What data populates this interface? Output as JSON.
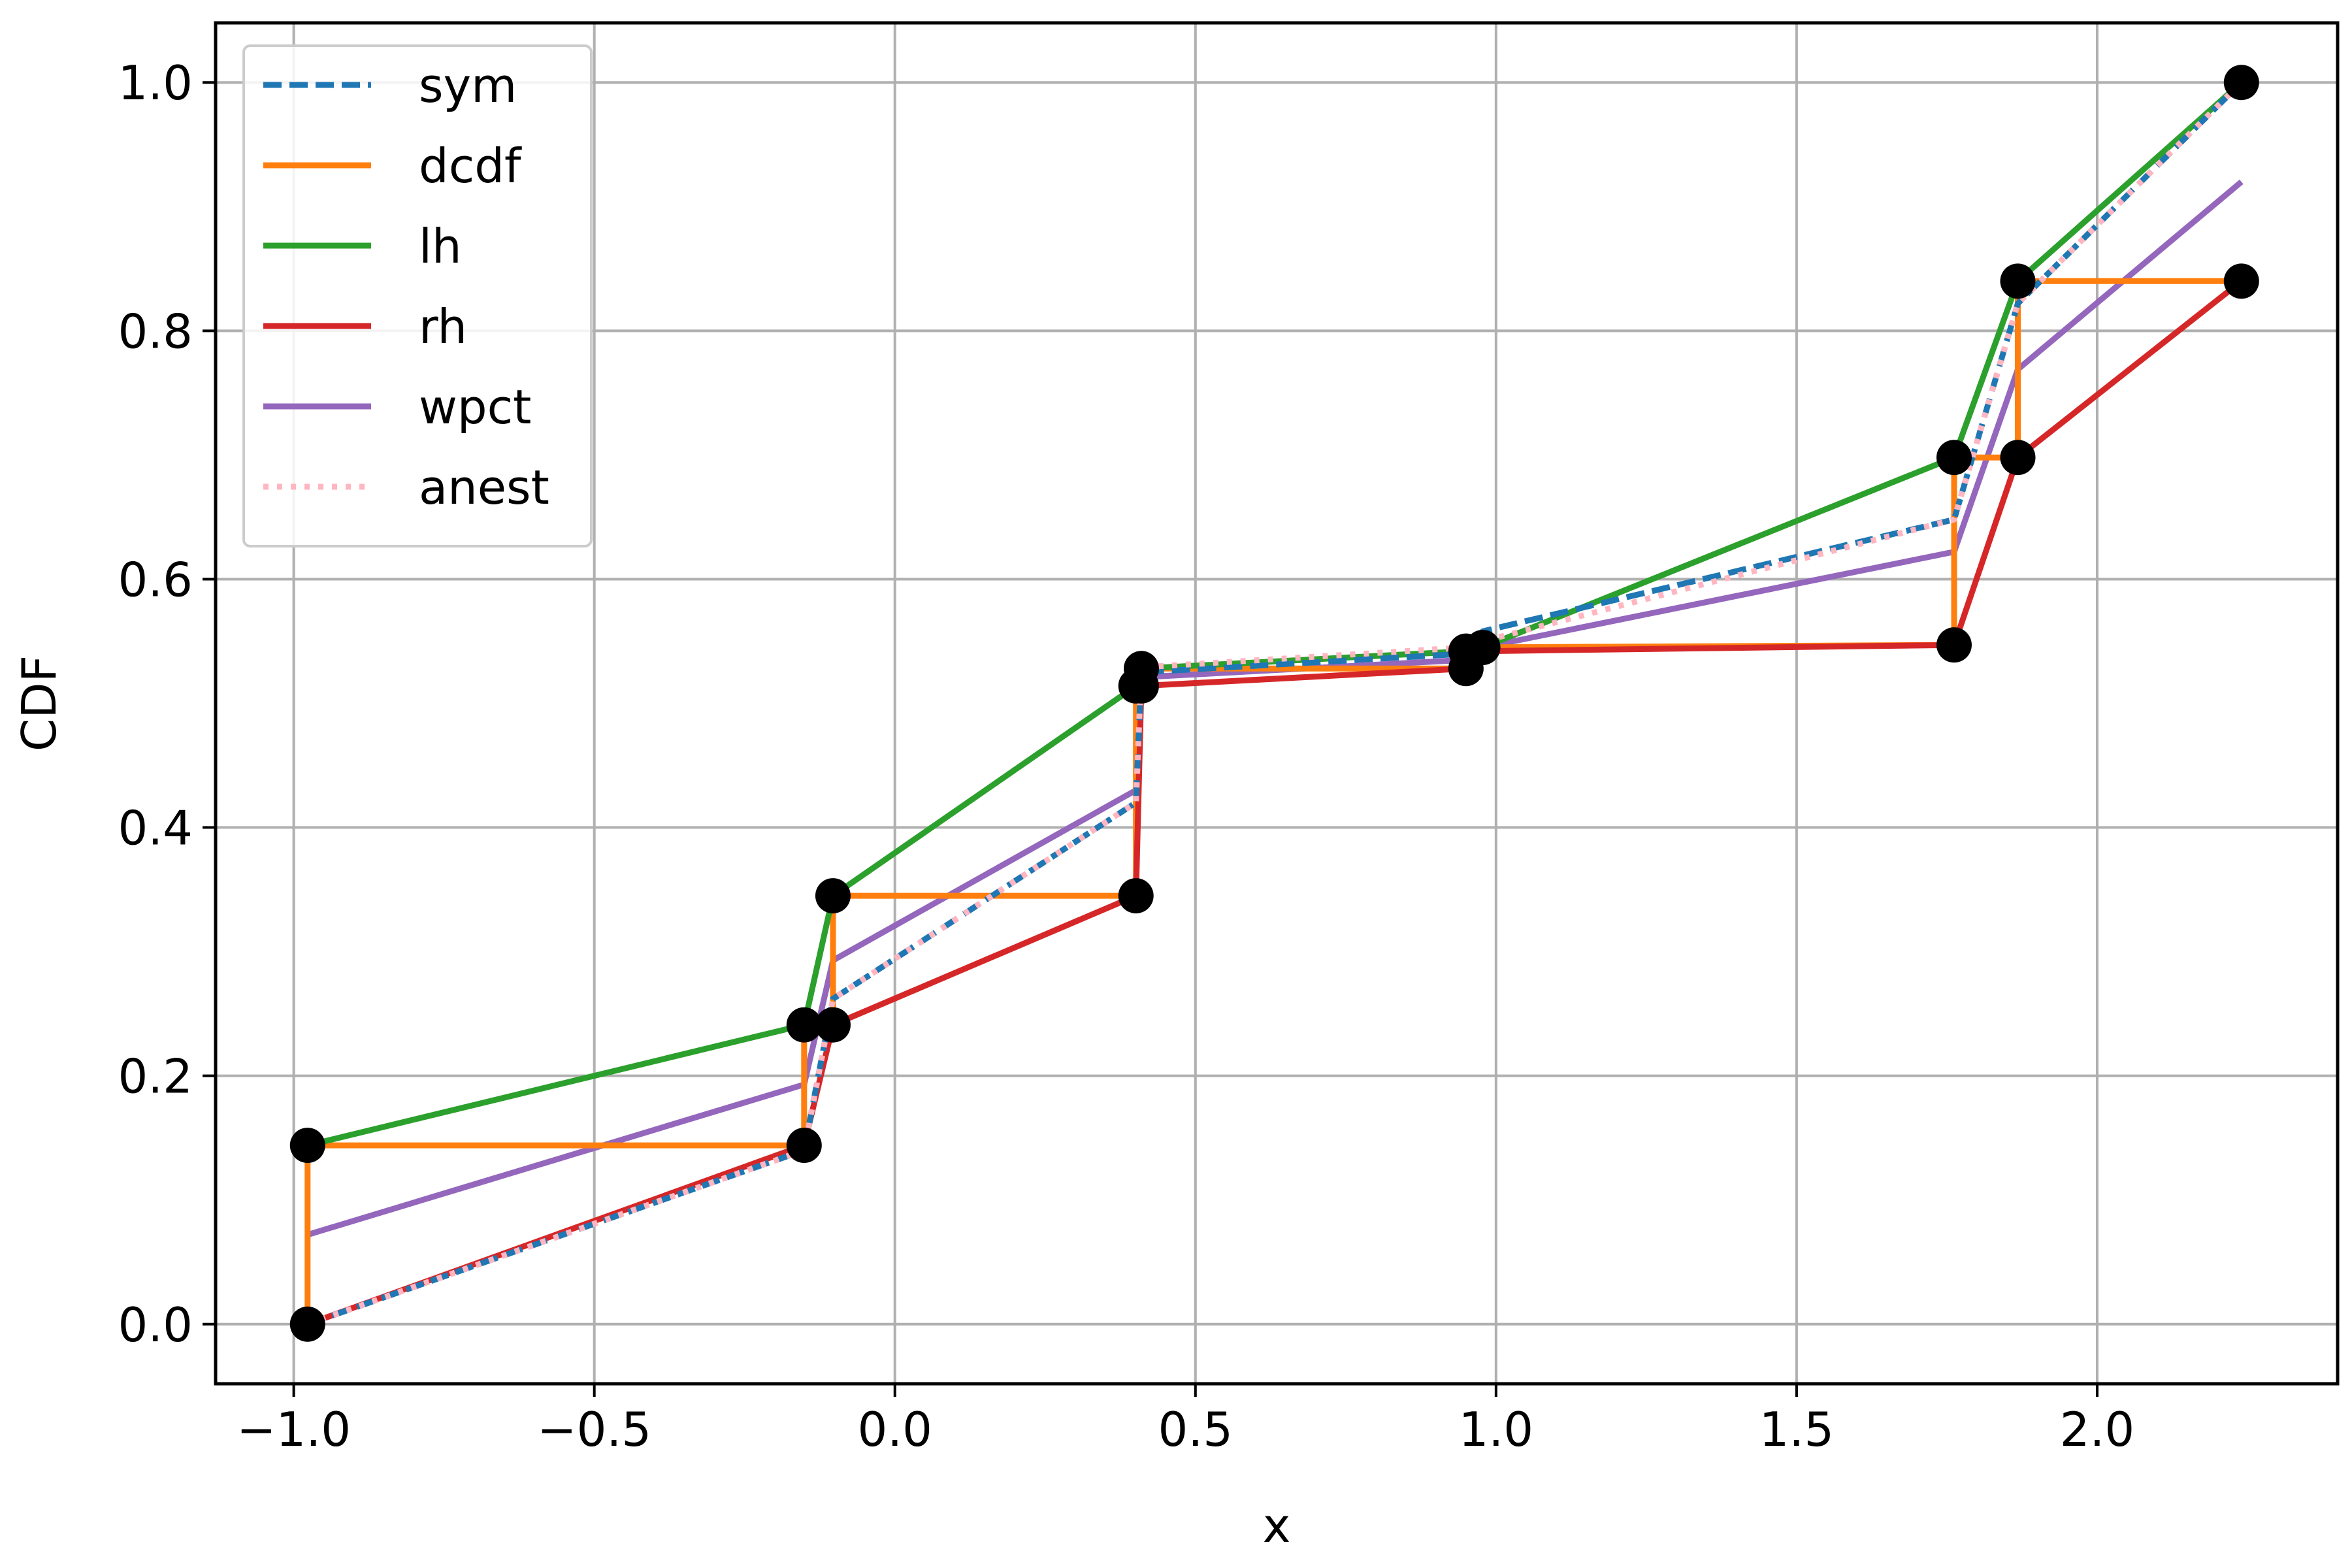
{
  "chart_data": {
    "type": "line",
    "title": "",
    "xlabel": "x",
    "ylabel": "CDF",
    "xlim": [
      -1.13,
      2.4
    ],
    "ylim": [
      -0.048,
      1.048
    ],
    "xticks": [
      -1.0,
      -0.5,
      0.0,
      0.5,
      1.0,
      1.5,
      2.0
    ],
    "xtick_labels": [
      "−1.0",
      "−0.5",
      "0.0",
      "0.5",
      "1.0",
      "1.5",
      "2.0"
    ],
    "yticks": [
      0.0,
      0.2,
      0.4,
      0.6,
      0.8,
      1.0
    ],
    "ytick_labels": [
      "0.0",
      "0.2",
      "0.4",
      "0.6",
      "0.8",
      "1.0"
    ],
    "grid": true,
    "legend_position": "top-left",
    "points": {
      "x": [
        -0.977,
        -0.977,
        -0.151,
        -0.151,
        -0.103,
        -0.103,
        0.401,
        0.401,
        0.41,
        0.41,
        0.95,
        0.95,
        0.978,
        1.762,
        1.762,
        1.868,
        1.868,
        2.24,
        2.24
      ],
      "y": [
        0.0,
        0.144,
        0.144,
        0.241,
        0.241,
        0.345,
        0.345,
        0.514,
        0.514,
        0.528,
        0.528,
        0.542,
        0.545,
        0.547,
        0.698,
        0.698,
        0.84,
        0.84,
        1.0
      ]
    },
    "series": [
      {
        "name": "sym",
        "color": "#1f77b4",
        "style": "dashed",
        "x": [
          -0.977,
          -0.151,
          -0.103,
          0.401,
          0.41,
          0.95,
          0.978,
          1.762,
          1.868,
          2.24
        ],
        "y": [
          0.0,
          0.14,
          0.262,
          0.42,
          0.525,
          0.54,
          0.558,
          0.648,
          0.822,
          1.0
        ]
      },
      {
        "name": "dcdf",
        "color": "#ff7f0e",
        "style": "solid",
        "x": [
          -0.977,
          -0.977,
          -0.151,
          -0.151,
          -0.103,
          -0.103,
          0.401,
          0.401,
          0.41,
          0.95,
          0.95,
          1.762,
          1.762,
          1.868,
          1.868,
          2.24
        ],
        "y": [
          0.0,
          0.144,
          0.144,
          0.241,
          0.241,
          0.345,
          0.345,
          0.514,
          0.528,
          0.528,
          0.545,
          0.547,
          0.698,
          0.698,
          0.84,
          0.84
        ]
      },
      {
        "name": "lh",
        "color": "#2ca02c",
        "style": "solid",
        "x": [
          -0.977,
          -0.151,
          -0.103,
          0.401,
          0.41,
          0.95,
          0.978,
          1.762,
          1.868,
          2.24
        ],
        "y": [
          0.144,
          0.241,
          0.345,
          0.514,
          0.528,
          0.542,
          0.545,
          0.698,
          0.84,
          1.0
        ]
      },
      {
        "name": "rh",
        "color": "#d62728",
        "style": "solid",
        "x": [
          -0.977,
          -0.151,
          -0.103,
          0.401,
          0.41,
          0.95,
          0.978,
          1.762,
          1.868,
          2.24
        ],
        "y": [
          0.0,
          0.144,
          0.241,
          0.345,
          0.514,
          0.528,
          0.542,
          0.547,
          0.698,
          0.84
        ]
      },
      {
        "name": "wpct",
        "color": "#9467bd",
        "style": "solid",
        "x": [
          -0.977,
          -0.151,
          -0.103,
          0.401,
          0.41,
          0.95,
          0.978,
          1.762,
          1.868,
          2.24
        ],
        "y": [
          0.072,
          0.193,
          0.293,
          0.43,
          0.521,
          0.535,
          0.545,
          0.622,
          0.769,
          0.92
        ]
      },
      {
        "name": "anest",
        "color": "#ffb6c1",
        "style": "dotted",
        "x": [
          -0.977,
          -0.151,
          -0.103,
          0.401,
          0.41,
          0.95,
          0.978,
          1.762,
          1.868,
          2.24
        ],
        "y": [
          0.0,
          0.14,
          0.262,
          0.42,
          0.529,
          0.545,
          0.55,
          0.648,
          0.822,
          1.0
        ]
      }
    ]
  }
}
